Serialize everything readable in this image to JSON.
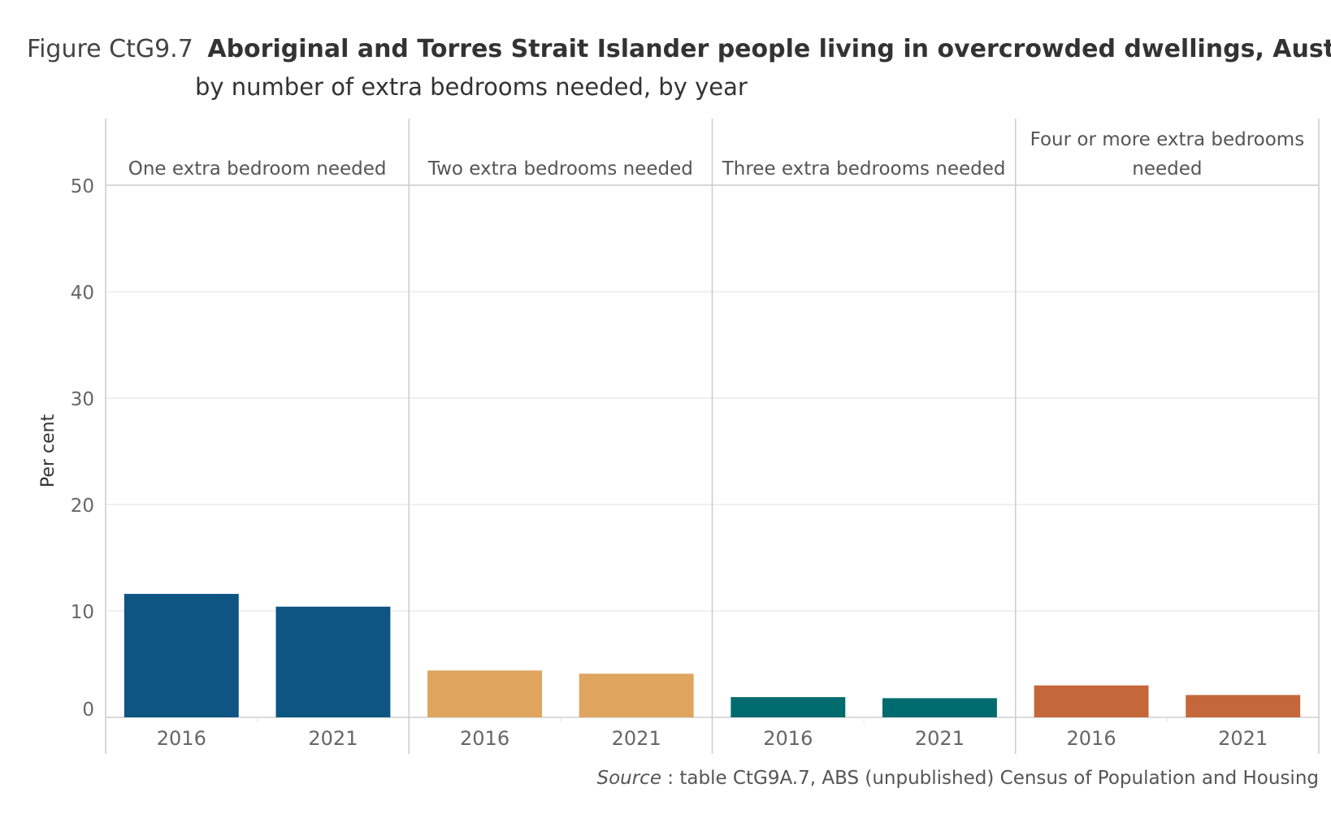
{
  "chart_data": {
    "type": "bar",
    "title_prefix": "Figure CtG9.7",
    "title": "Aboriginal and Torres Strait Islander people living in overcrowded dwellings, Aust",
    "subtitle": "by number of extra bedrooms needed, by year",
    "ylabel": "Per cent",
    "ylim": [
      0,
      50
    ],
    "yticks": [
      0,
      10,
      20,
      30,
      40,
      50
    ],
    "grid": true,
    "source_label": "Source",
    "source_text": ": table CtG9A.7, ABS (unpublished) Census of Population and Housing",
    "categories": [
      "2016",
      "2021"
    ],
    "panels": [
      {
        "label_lines": [
          "One extra bedroom needed"
        ],
        "color": "#0e5583",
        "values": [
          11.6,
          10.4
        ]
      },
      {
        "label_lines": [
          "Two extra bedrooms needed"
        ],
        "color": "#dfa45e",
        "values": [
          4.4,
          4.1
        ]
      },
      {
        "label_lines": [
          "Three extra bedrooms needed"
        ],
        "color": "#006b6e",
        "values": [
          1.9,
          1.8
        ]
      },
      {
        "label_lines": [
          "Four or more extra bedrooms",
          "needed"
        ],
        "color": "#c4683c",
        "values": [
          3.0,
          2.1
        ]
      }
    ]
  }
}
